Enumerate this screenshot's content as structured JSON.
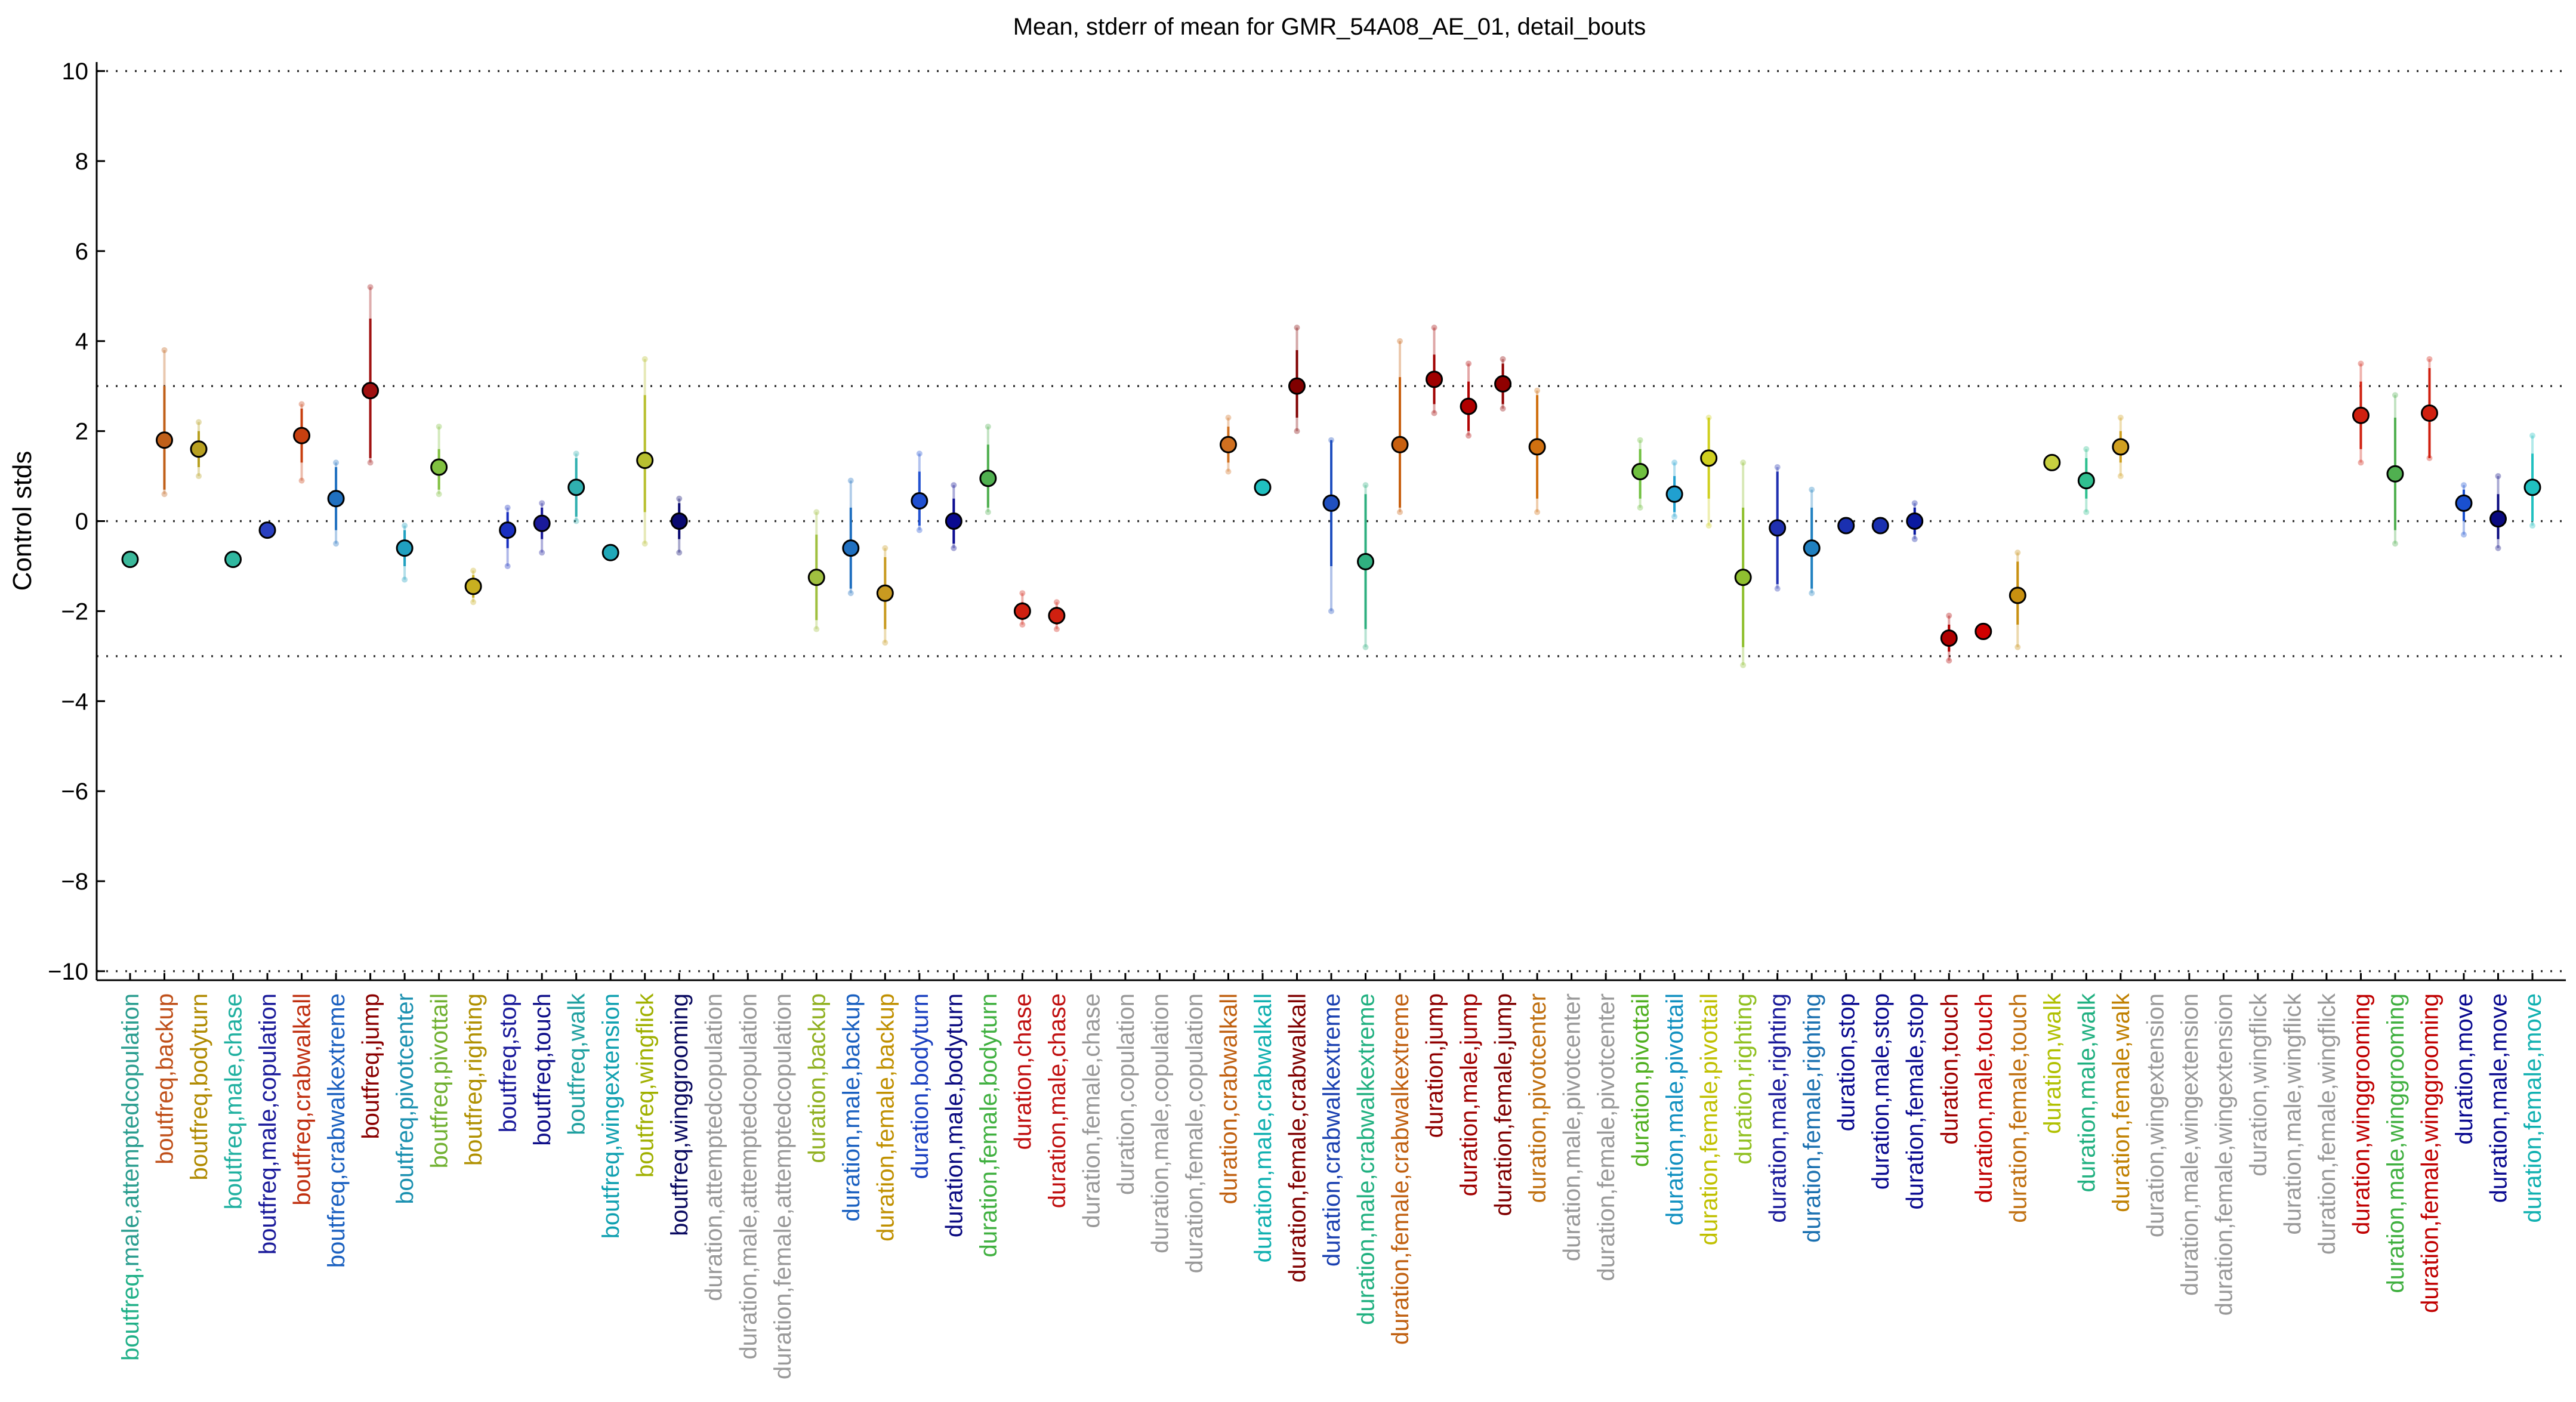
{
  "chart_data": {
    "type": "scatter",
    "title": "Mean, stderr of mean for GMR_54A08_AE_01, detail_bouts",
    "ylabel": "Control stds",
    "xlabel": "",
    "ylim": [
      -10.2,
      10.2
    ],
    "yticks": [
      10,
      8,
      6,
      4,
      2,
      0,
      -2,
      -4,
      -6,
      -8,
      -10
    ],
    "hlines": [
      10,
      3,
      0,
      -3,
      -10
    ],
    "grid": false,
    "legend": "none",
    "categories": [
      "boutfreq,male,attemptedcopulation",
      "boutfreq,backup",
      "boutfreq,bodyturn",
      "boutfreq,male,chase",
      "boutfreq,male,copulation",
      "boutfreq,crabwalkall",
      "boutfreq,crabwalkextreme",
      "boutfreq,jump",
      "boutfreq,pivotcenter",
      "boutfreq,pivottail",
      "boutfreq,righting",
      "boutfreq,stop",
      "boutfreq,touch",
      "boutfreq,walk",
      "boutfreq,wingextension",
      "boutfreq,wingflick",
      "boutfreq,winggrooming",
      "duration,attemptedcopulation",
      "duration,male,attemptedcopulation",
      "duration,female,attemptedcopulation",
      "duration,backup",
      "duration,male,backup",
      "duration,female,backup",
      "duration,bodyturn",
      "duration,male,bodyturn",
      "duration,female,bodyturn",
      "duration,chase",
      "duration,male,chase",
      "duration,female,chase",
      "duration,copulation",
      "duration,male,copulation",
      "duration,female,copulation",
      "duration,crabwalkall",
      "duration,male,crabwalkall",
      "duration,female,crabwalkall",
      "duration,crabwalkextreme",
      "duration,male,crabwalkextreme",
      "duration,female,crabwalkextreme",
      "duration,jump",
      "duration,male,jump",
      "duration,female,jump",
      "duration,pivotcenter",
      "duration,male,pivotcenter",
      "duration,female,pivotcenter",
      "duration,pivottail",
      "duration,male,pivottail",
      "duration,female,pivottail",
      "duration,righting",
      "duration,male,righting",
      "duration,female,righting",
      "duration,stop",
      "duration,male,stop",
      "duration,female,stop",
      "duration,touch",
      "duration,male,touch",
      "duration,female,touch",
      "duration,walk",
      "duration,male,walk",
      "duration,female,walk",
      "duration,wingextension",
      "duration,male,wingextension",
      "duration,female,wingextension",
      "duration,wingflick",
      "duration,male,wingflick",
      "duration,female,wingflick",
      "duration,winggrooming",
      "duration,male,winggrooming",
      "duration,female,winggrooming",
      "duration,move",
      "duration,male,move",
      "duration,female,move"
    ],
    "prefix_color": "#20b088",
    "label_colors": [
      "#2a9d8f",
      "#c0501a",
      "#b08a00",
      "#20b0a0",
      "#1a1a9a",
      "#c03010",
      "#1a60c0",
      "#8a0000",
      "#1a90b0",
      "#70b030",
      "#b09000",
      "#1a1a9a",
      "#10108a",
      "#20a0a0",
      "#10a0b0",
      "#a0b000",
      "#0a0a60",
      "#999999",
      "#999999",
      "#999999",
      "#90b020",
      "#1a60c0",
      "#c09000",
      "#1a40c0",
      "#0a0a80",
      "#40b040",
      "#c01010",
      "#c01010",
      "#999999",
      "#999999",
      "#999999",
      "#999999",
      "#c06010",
      "#10b0b0",
      "#800000",
      "#1a40b0",
      "#20b080",
      "#c06010",
      "#900000",
      "#a00000",
      "#800000",
      "#c07010",
      "#999999",
      "#999999",
      "#50b020",
      "#1090c0",
      "#c0c000",
      "#90c020",
      "#1a1a9a",
      "#1a70b0",
      "#0a0a90",
      "#0a0a90",
      "#0a0a90",
      "#a00000",
      "#c00000",
      "#c07010",
      "#b0c000",
      "#20b080",
      "#c08000",
      "#999999",
      "#999999",
      "#999999",
      "#999999",
      "#999999",
      "#999999",
      "#c00000",
      "#40b040",
      "#c00000",
      "#0a0a90",
      "#0a0a90",
      "#10b0b0"
    ],
    "points": [
      {
        "i": 0,
        "mean": -0.85,
        "lo": null,
        "hi": null,
        "lo2": null,
        "hi2": null,
        "color": "#3bb89a"
      },
      {
        "i": 1,
        "mean": 1.8,
        "lo": 0.7,
        "hi": 3.0,
        "lo2": 0.6,
        "hi2": 3.8,
        "color": "#c0601a"
      },
      {
        "i": 2,
        "mean": 1.6,
        "lo": 1.2,
        "hi": 2.0,
        "lo2": 1.0,
        "hi2": 2.2,
        "color": "#b8a020"
      },
      {
        "i": 3,
        "mean": -0.85,
        "lo": null,
        "hi": null,
        "lo2": null,
        "hi2": null,
        "color": "#30b8a0"
      },
      {
        "i": 4,
        "mean": -0.2,
        "lo": null,
        "hi": null,
        "lo2": null,
        "hi2": null,
        "color": "#2a40c0"
      },
      {
        "i": 5,
        "mean": 1.9,
        "lo": 1.3,
        "hi": 2.5,
        "lo2": 0.9,
        "hi2": 2.6,
        "color": "#c84010"
      },
      {
        "i": 6,
        "mean": 0.5,
        "lo": -0.2,
        "hi": 1.2,
        "lo2": -0.5,
        "hi2": 1.3,
        "color": "#2070c0"
      },
      {
        "i": 7,
        "mean": 2.9,
        "lo": 1.4,
        "hi": 4.5,
        "lo2": 1.3,
        "hi2": 5.2,
        "color": "#a01010"
      },
      {
        "i": 8,
        "mean": -0.6,
        "lo": -1.0,
        "hi": -0.2,
        "lo2": -1.3,
        "hi2": -0.1,
        "color": "#20a0c0"
      },
      {
        "i": 9,
        "mean": 1.2,
        "lo": 0.7,
        "hi": 1.6,
        "lo2": 0.6,
        "hi2": 2.1,
        "color": "#80c040"
      },
      {
        "i": 10,
        "mean": -1.45,
        "lo": -1.7,
        "hi": -1.2,
        "lo2": -1.8,
        "hi2": -1.1,
        "color": "#c8b020"
      },
      {
        "i": 11,
        "mean": -0.2,
        "lo": -0.6,
        "hi": 0.2,
        "lo2": -1.0,
        "hi2": 0.3,
        "color": "#1a30c0"
      },
      {
        "i": 12,
        "mean": -0.05,
        "lo": -0.4,
        "hi": 0.3,
        "lo2": -0.7,
        "hi2": 0.4,
        "color": "#1a1a9a"
      },
      {
        "i": 13,
        "mean": 0.75,
        "lo": 0.1,
        "hi": 1.4,
        "lo2": 0.0,
        "hi2": 1.5,
        "color": "#30b0b0"
      },
      {
        "i": 14,
        "mean": -0.7,
        "lo": null,
        "hi": null,
        "lo2": null,
        "hi2": null,
        "color": "#20a8b8"
      },
      {
        "i": 15,
        "mean": 1.35,
        "lo": 0.2,
        "hi": 2.8,
        "lo2": -0.5,
        "hi2": 3.6,
        "color": "#b8c030"
      },
      {
        "i": 16,
        "mean": 0.0,
        "lo": -0.4,
        "hi": 0.4,
        "lo2": -0.7,
        "hi2": 0.5,
        "color": "#0a0a70"
      },
      {
        "i": 20,
        "mean": -1.25,
        "lo": -2.2,
        "hi": -0.3,
        "lo2": -2.4,
        "hi2": 0.2,
        "color": "#a0c040"
      },
      {
        "i": 21,
        "mean": -0.6,
        "lo": -1.5,
        "hi": 0.3,
        "lo2": -1.6,
        "hi2": 0.9,
        "color": "#2070c0"
      },
      {
        "i": 22,
        "mean": -1.6,
        "lo": -2.4,
        "hi": -0.8,
        "lo2": -2.7,
        "hi2": -0.6,
        "color": "#c89a20"
      },
      {
        "i": 23,
        "mean": 0.45,
        "lo": -0.1,
        "hi": 1.1,
        "lo2": -0.2,
        "hi2": 1.5,
        "color": "#2050d0"
      },
      {
        "i": 24,
        "mean": 0.0,
        "lo": -0.5,
        "hi": 0.5,
        "lo2": -0.6,
        "hi2": 0.8,
        "color": "#0a0a90"
      },
      {
        "i": 25,
        "mean": 0.95,
        "lo": 0.3,
        "hi": 1.7,
        "lo2": 0.2,
        "hi2": 2.1,
        "color": "#50b050"
      },
      {
        "i": 26,
        "mean": -2.0,
        "lo": -2.2,
        "hi": -1.8,
        "lo2": -2.3,
        "hi2": -1.6,
        "color": "#d02010"
      },
      {
        "i": 27,
        "mean": -2.1,
        "lo": -2.3,
        "hi": -1.9,
        "lo2": -2.4,
        "hi2": -1.8,
        "color": "#d02010"
      },
      {
        "i": 32,
        "mean": 1.7,
        "lo": 1.3,
        "hi": 2.1,
        "lo2": 1.1,
        "hi2": 2.3,
        "color": "#d07020"
      },
      {
        "i": 33,
        "mean": 0.75,
        "lo": null,
        "hi": null,
        "lo2": null,
        "hi2": null,
        "color": "#20c0c0"
      },
      {
        "i": 34,
        "mean": 3.0,
        "lo": 2.3,
        "hi": 3.8,
        "lo2": 2.0,
        "hi2": 4.3,
        "color": "#800000"
      },
      {
        "i": 35,
        "mean": 0.4,
        "lo": -1.0,
        "hi": 1.8,
        "lo2": -2.0,
        "hi2": 1.8,
        "color": "#2050c0"
      },
      {
        "i": 36,
        "mean": -0.9,
        "lo": -2.4,
        "hi": 0.6,
        "lo2": -2.8,
        "hi2": 0.8,
        "color": "#30b080"
      },
      {
        "i": 37,
        "mean": 1.7,
        "lo": 0.3,
        "hi": 3.2,
        "lo2": 0.2,
        "hi2": 4.0,
        "color": "#c86010"
      },
      {
        "i": 38,
        "mean": 3.15,
        "lo": 2.6,
        "hi": 3.7,
        "lo2": 2.4,
        "hi2": 4.3,
        "color": "#a00000"
      },
      {
        "i": 39,
        "mean": 2.55,
        "lo": 2.0,
        "hi": 3.1,
        "lo2": 1.9,
        "hi2": 3.5,
        "color": "#b00000"
      },
      {
        "i": 40,
        "mean": 3.05,
        "lo": 2.6,
        "hi": 3.5,
        "lo2": 2.5,
        "hi2": 3.6,
        "color": "#900000"
      },
      {
        "i": 41,
        "mean": 1.65,
        "lo": 0.5,
        "hi": 2.8,
        "lo2": 0.2,
        "hi2": 2.9,
        "color": "#d07010"
      },
      {
        "i": 44,
        "mean": 1.1,
        "lo": 0.5,
        "hi": 1.6,
        "lo2": 0.3,
        "hi2": 1.8,
        "color": "#70c040"
      },
      {
        "i": 45,
        "mean": 0.6,
        "lo": 0.2,
        "hi": 1.0,
        "lo2": 0.1,
        "hi2": 1.3,
        "color": "#20a0d0"
      },
      {
        "i": 46,
        "mean": 1.4,
        "lo": 0.5,
        "hi": 2.3,
        "lo2": -0.1,
        "hi2": 2.3,
        "color": "#d0d020"
      },
      {
        "i": 47,
        "mean": -1.25,
        "lo": -2.8,
        "hi": 0.3,
        "lo2": -3.2,
        "hi2": 1.3,
        "color": "#90c030"
      },
      {
        "i": 48,
        "mean": -0.15,
        "lo": -1.4,
        "hi": 1.1,
        "lo2": -1.5,
        "hi2": 1.2,
        "color": "#2030b0"
      },
      {
        "i": 49,
        "mean": -0.6,
        "lo": -1.5,
        "hi": 0.3,
        "lo2": -1.6,
        "hi2": 0.7,
        "color": "#2080c0"
      },
      {
        "i": 50,
        "mean": -0.1,
        "lo": null,
        "hi": null,
        "lo2": null,
        "hi2": null,
        "color": "#1a30b0"
      },
      {
        "i": 51,
        "mean": -0.1,
        "lo": null,
        "hi": null,
        "lo2": null,
        "hi2": null,
        "color": "#1a30b0"
      },
      {
        "i": 52,
        "mean": 0.0,
        "lo": -0.3,
        "hi": 0.3,
        "lo2": -0.4,
        "hi2": 0.4,
        "color": "#0a1aa0"
      },
      {
        "i": 53,
        "mean": -2.6,
        "lo": -2.9,
        "hi": -2.3,
        "lo2": -3.1,
        "hi2": -2.1,
        "color": "#b00000"
      },
      {
        "i": 54,
        "mean": -2.45,
        "lo": null,
        "hi": null,
        "lo2": null,
        "hi2": null,
        "color": "#d00000"
      },
      {
        "i": 55,
        "mean": -1.65,
        "lo": -2.3,
        "hi": -0.9,
        "lo2": -2.8,
        "hi2": -0.7,
        "color": "#c89010"
      },
      {
        "i": 56,
        "mean": 1.3,
        "lo": null,
        "hi": null,
        "lo2": null,
        "hi2": null,
        "color": "#c8d040"
      },
      {
        "i": 57,
        "mean": 0.9,
        "lo": 0.5,
        "hi": 1.4,
        "lo2": 0.2,
        "hi2": 1.6,
        "color": "#30c090"
      },
      {
        "i": 58,
        "mean": 1.65,
        "lo": 1.3,
        "hi": 2.0,
        "lo2": 1.0,
        "hi2": 2.3,
        "color": "#d0a020"
      },
      {
        "i": 65,
        "mean": 2.35,
        "lo": 1.6,
        "hi": 3.1,
        "lo2": 1.3,
        "hi2": 3.5,
        "color": "#d02010"
      },
      {
        "i": 66,
        "mean": 1.05,
        "lo": -0.2,
        "hi": 2.3,
        "lo2": -0.5,
        "hi2": 2.8,
        "color": "#50b050"
      },
      {
        "i": 67,
        "mean": 2.4,
        "lo": 1.4,
        "hi": 3.4,
        "lo2": 1.4,
        "hi2": 3.6,
        "color": "#d02010"
      },
      {
        "i": 68,
        "mean": 0.4,
        "lo": 0.0,
        "hi": 0.7,
        "lo2": -0.3,
        "hi2": 0.8,
        "color": "#1a50d0"
      },
      {
        "i": 69,
        "mean": 0.05,
        "lo": -0.4,
        "hi": 0.6,
        "lo2": -0.6,
        "hi2": 1.0,
        "color": "#0a0a80"
      },
      {
        "i": 70,
        "mean": 0.75,
        "lo": 0.0,
        "hi": 1.5,
        "lo2": -0.1,
        "hi2": 1.9,
        "color": "#20c0c0"
      }
    ]
  }
}
